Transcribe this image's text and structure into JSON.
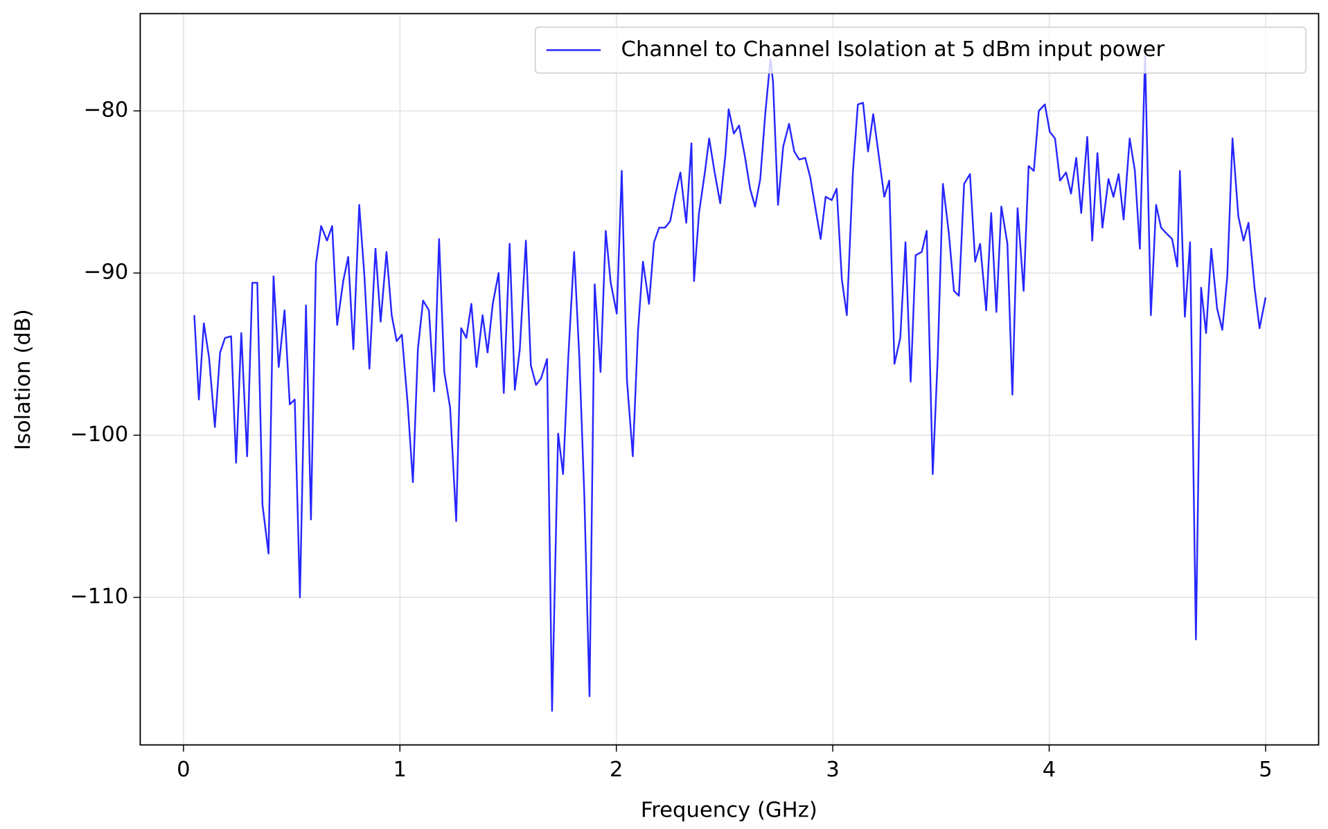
{
  "chart_data": {
    "type": "line",
    "xlabel": "Frequency (GHz)",
    "ylabel": "Isolation (dB)",
    "x": [
      0.05,
      0.071,
      0.094,
      0.118,
      0.145,
      0.169,
      0.192,
      0.22,
      0.243,
      0.267,
      0.294,
      0.318,
      0.341,
      0.365,
      0.393,
      0.416,
      0.44,
      0.467,
      0.491,
      0.514,
      0.538,
      0.566,
      0.589,
      0.612,
      0.636,
      0.663,
      0.687,
      0.71,
      0.738,
      0.761,
      0.785,
      0.812,
      0.836,
      0.859,
      0.887,
      0.911,
      0.938,
      0.962,
      0.985,
      1.009,
      1.036,
      1.06,
      1.083,
      1.107,
      1.134,
      1.158,
      1.181,
      1.205,
      1.232,
      1.26,
      1.283,
      1.307,
      1.33,
      1.354,
      1.382,
      1.405,
      1.429,
      1.456,
      1.48,
      1.507,
      1.531,
      1.554,
      1.582,
      1.605,
      1.629,
      1.652,
      1.68,
      1.703,
      1.731,
      1.754,
      1.778,
      1.805,
      1.829,
      1.852,
      1.876,
      1.9,
      1.927,
      1.951,
      1.974,
      2.002,
      2.025,
      2.049,
      2.076,
      2.1,
      2.123,
      2.151,
      2.174,
      2.198,
      2.225,
      2.249,
      2.272,
      2.296,
      2.323,
      2.347,
      2.359,
      2.382,
      2.41,
      2.429,
      2.453,
      2.48,
      2.504,
      2.519,
      2.543,
      2.567,
      2.594,
      2.618,
      2.641,
      2.665,
      2.688,
      2.712,
      2.724,
      2.747,
      2.771,
      2.798,
      2.822,
      2.845,
      2.873,
      2.896,
      2.92,
      2.944,
      2.967,
      2.995,
      3.018,
      3.042,
      3.065,
      3.093,
      3.116,
      3.14,
      3.163,
      3.187,
      3.214,
      3.238,
      3.261,
      3.285,
      3.312,
      3.336,
      3.36,
      3.383,
      3.411,
      3.434,
      3.462,
      3.485,
      3.509,
      3.536,
      3.56,
      3.583,
      3.607,
      3.634,
      3.658,
      3.681,
      3.709,
      3.732,
      3.756,
      3.779,
      3.807,
      3.83,
      3.854,
      3.882,
      3.905,
      3.929,
      3.952,
      3.98,
      4.003,
      4.027,
      4.05,
      4.078,
      4.101,
      4.125,
      4.148,
      4.176,
      4.199,
      4.223,
      4.246,
      4.274,
      4.297,
      4.321,
      4.344,
      4.372,
      4.396,
      4.419,
      4.443,
      4.47,
      4.494,
      4.517,
      4.545,
      4.568,
      4.592,
      4.604,
      4.627,
      4.651,
      4.678,
      4.702,
      4.725,
      4.749,
      4.776,
      4.8,
      4.823,
      4.847,
      4.874,
      4.898,
      4.921,
      4.949,
      4.972,
      5.0
    ],
    "series": [
      {
        "name": "Channel to Channel Isolation at 5 dBm input power",
        "color": "#0000ff",
        "values": [
          -92.6,
          -97.8,
          -93.1,
          -95.2,
          -99.5,
          -94.9,
          -94.0,
          -93.9,
          -101.7,
          -93.7,
          -101.3,
          -90.6,
          -90.6,
          -104.3,
          -107.3,
          -90.2,
          -95.8,
          -92.3,
          -98.1,
          -97.8,
          -110.0,
          -92.0,
          -105.2,
          -89.4,
          -87.1,
          -88.0,
          -87.1,
          -93.2,
          -90.5,
          -89.0,
          -94.7,
          -85.8,
          -90.2,
          -95.9,
          -88.5,
          -93.0,
          -88.7,
          -92.6,
          -94.2,
          -93.8,
          -98.1,
          -102.9,
          -94.7,
          -91.7,
          -92.3,
          -97.3,
          -87.9,
          -96.1,
          -98.3,
          -105.3,
          -93.4,
          -94.0,
          -91.9,
          -95.8,
          -92.6,
          -94.9,
          -91.9,
          -90.0,
          -97.4,
          -88.2,
          -97.2,
          -94.7,
          -88.0,
          -95.7,
          -96.9,
          -96.5,
          -95.3,
          -117.0,
          -99.9,
          -102.4,
          -95.2,
          -88.7,
          -95.2,
          -103.7,
          -116.1,
          -90.7,
          -96.1,
          -87.4,
          -90.6,
          -92.5,
          -83.7,
          -96.6,
          -101.3,
          -93.6,
          -89.3,
          -91.9,
          -88.1,
          -87.2,
          -87.2,
          -86.8,
          -85.2,
          -83.8,
          -86.9,
          -82.0,
          -90.5,
          -86.3,
          -83.7,
          -81.7,
          -83.7,
          -85.7,
          -82.7,
          -79.9,
          -81.4,
          -80.9,
          -82.8,
          -84.8,
          -85.9,
          -84.2,
          -80.2,
          -76.8,
          -78.2,
          -85.8,
          -82.2,
          -80.8,
          -82.5,
          -83.0,
          -82.9,
          -84.1,
          -86.0,
          -87.9,
          -85.3,
          -85.5,
          -84.8,
          -90.4,
          -92.6,
          -83.8,
          -79.6,
          -79.5,
          -82.5,
          -80.2,
          -82.9,
          -85.3,
          -84.3,
          -95.6,
          -94.0,
          -88.1,
          -96.7,
          -88.9,
          -88.7,
          -87.4,
          -102.4,
          -95.2,
          -84.5,
          -87.5,
          -91.1,
          -91.4,
          -84.5,
          -83.9,
          -89.3,
          -88.2,
          -92.3,
          -86.3,
          -92.4,
          -85.9,
          -88.2,
          -97.5,
          -86.0,
          -91.1,
          -83.4,
          -83.7,
          -80.0,
          -79.6,
          -81.3,
          -81.7,
          -84.3,
          -83.8,
          -85.1,
          -82.9,
          -86.3,
          -81.6,
          -88.0,
          -82.6,
          -87.2,
          -84.2,
          -85.3,
          -83.9,
          -86.7,
          -81.7,
          -83.7,
          -88.5,
          -76.6,
          -92.6,
          -85.8,
          -87.2,
          -87.6,
          -87.9,
          -89.6,
          -83.7,
          -92.7,
          -88.1,
          -112.6,
          -90.9,
          -93.7,
          -88.5,
          -92.2,
          -93.5,
          -90.2,
          -81.7,
          -86.5,
          -88.0,
          -86.9,
          -90.9,
          -93.4,
          -91.5
        ]
      }
    ],
    "xlim": [
      -0.2,
      5.245
    ],
    "ylim": [
      -119.1,
      -74.0
    ],
    "xticks": [
      0,
      1,
      2,
      3,
      4,
      5
    ],
    "yticks": [
      {
        "value": -110,
        "label": "−110"
      },
      {
        "value": -100,
        "label": "−100"
      },
      {
        "value": -90,
        "label": "−90"
      },
      {
        "value": -80,
        "label": "−80"
      }
    ],
    "grid": true,
    "legend": "upper right"
  }
}
